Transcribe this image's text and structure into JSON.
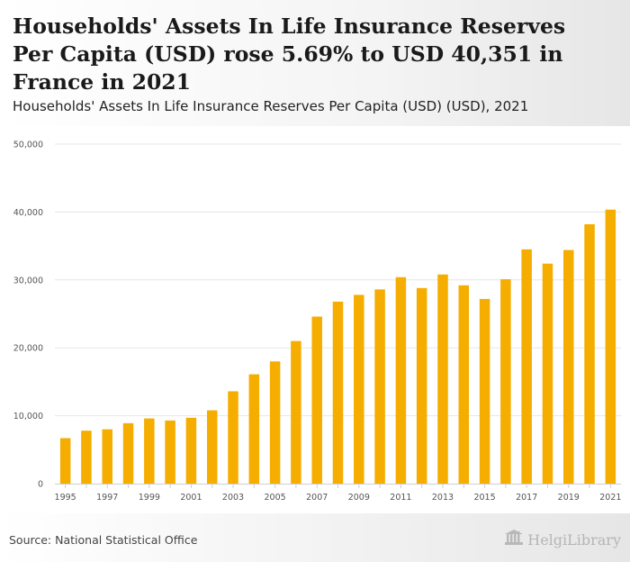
{
  "header": {
    "title": "Households' Assets In Life Insurance Reserves Per Capita (USD) rose 5.69% to USD 40,351 in France in 2021",
    "subtitle": "Households' Assets In Life Insurance Reserves Per Capita (USD) (USD), 2021"
  },
  "footer": {
    "source": "Source: National Statistical Office",
    "brand": "HelgiLibrary"
  },
  "colors": {
    "bar": "#f5ad00",
    "grid": "#e6e6e6",
    "axis_text": "#555555"
  },
  "chart_data": {
    "type": "bar",
    "title": "Households' Assets In Life Insurance Reserves Per Capita (USD) rose 5.69% to USD 40,351 in France in 2021",
    "xlabel": "",
    "ylabel": "",
    "ylim": [
      0,
      50000
    ],
    "yticks": [
      0,
      10000,
      20000,
      30000,
      40000,
      50000
    ],
    "ytick_labels": [
      "0",
      "10,000",
      "20,000",
      "30,000",
      "40,000",
      "50,000"
    ],
    "categories": [
      "1995",
      "1996",
      "1997",
      "1998",
      "1999",
      "2000",
      "2001",
      "2002",
      "2003",
      "2004",
      "2005",
      "2006",
      "2007",
      "2008",
      "2009",
      "2010",
      "2011",
      "2012",
      "2013",
      "2014",
      "2015",
      "2016",
      "2017",
      "2018",
      "2019",
      "2020",
      "2021"
    ],
    "xtick_labels": [
      "1995",
      "1997",
      "1999",
      "2001",
      "2003",
      "2005",
      "2007",
      "2009",
      "2011",
      "2013",
      "2015",
      "2017",
      "2019",
      "2021"
    ],
    "values": [
      6700,
      7800,
      8000,
      8900,
      9600,
      9300,
      9700,
      10800,
      13600,
      16100,
      18000,
      21000,
      24600,
      26800,
      27800,
      28600,
      30400,
      28800,
      30800,
      29200,
      27200,
      30100,
      34500,
      32400,
      34400,
      38200,
      40351
    ],
    "grid": true,
    "legend": "none"
  }
}
